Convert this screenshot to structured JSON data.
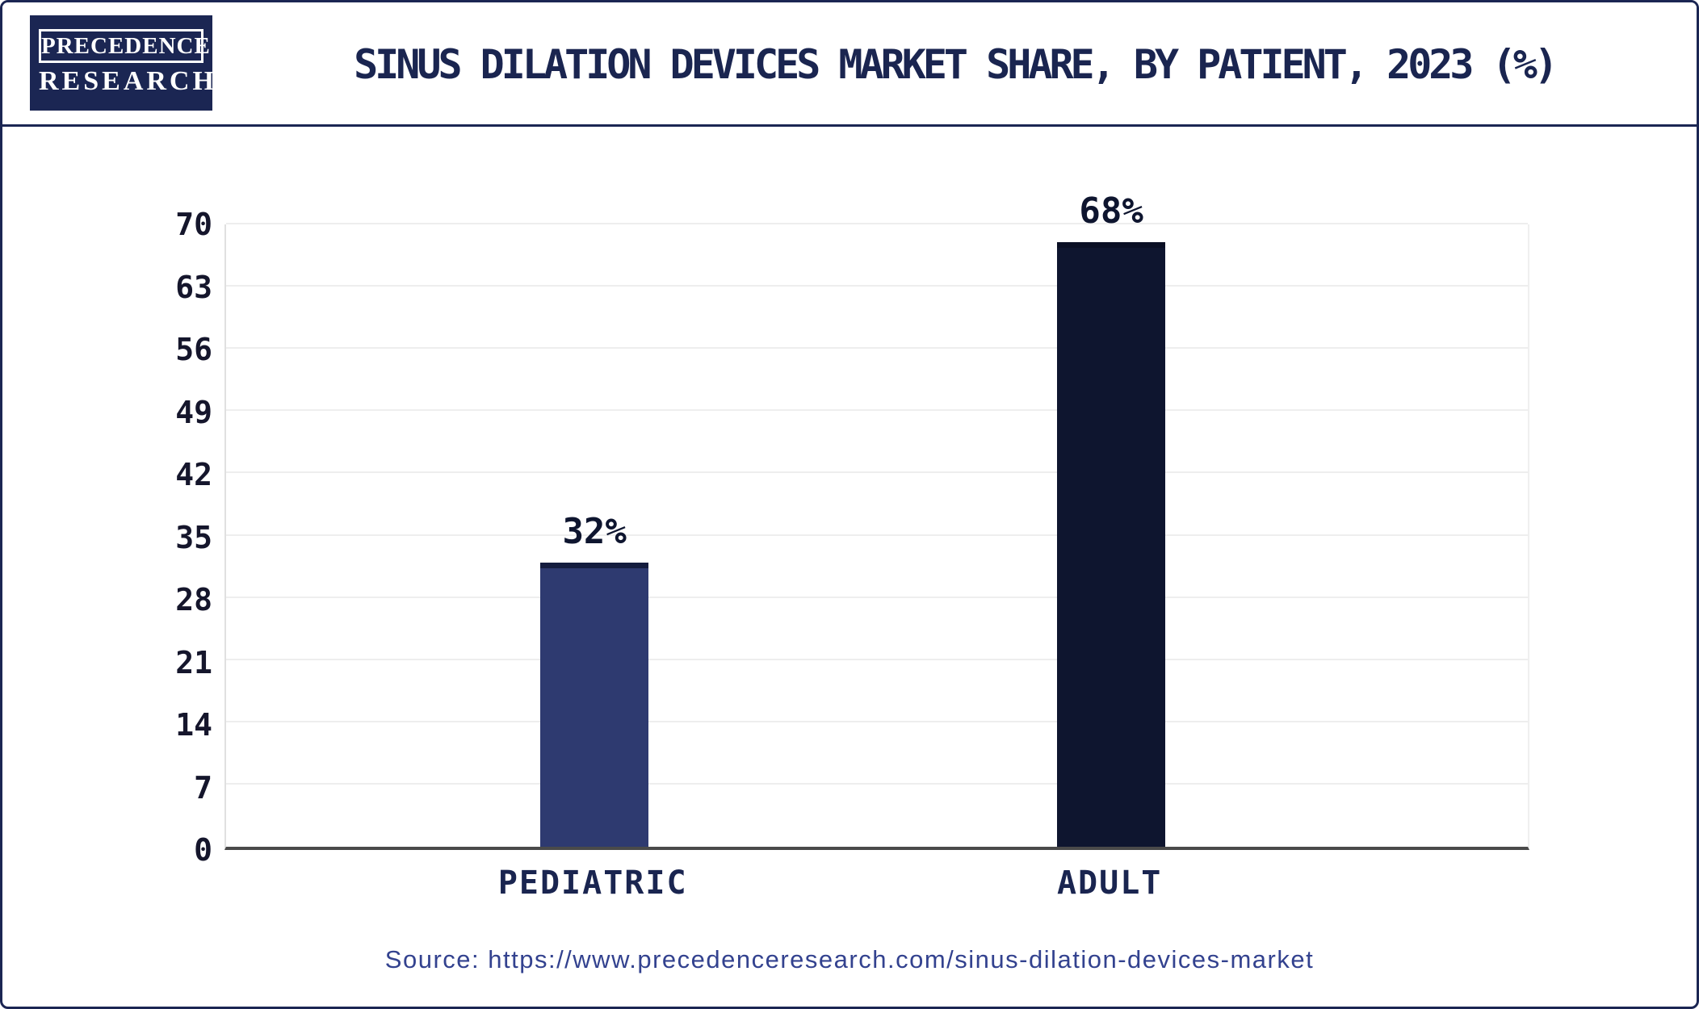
{
  "header": {
    "logo_line1": "PRECEDENCE",
    "logo_line2": "RESEARCH",
    "title": "SINUS DILATION DEVICES MARKET SHARE, BY PATIENT, 2023 (%)"
  },
  "chart_data": {
    "type": "bar",
    "title": "SINUS DILATION DEVICES MARKET SHARE, BY PATIENT, 2023 (%)",
    "categories": [
      "PEDIATRIC",
      "ADULT"
    ],
    "values": [
      32,
      68
    ],
    "value_labels": [
      "32%",
      "68%"
    ],
    "yticks": [
      0,
      7,
      14,
      21,
      28,
      35,
      42,
      49,
      56,
      63,
      70
    ],
    "ylim": [
      0,
      70
    ],
    "grid": true,
    "legend": "none",
    "bar_colors": [
      "#2e3a70",
      "#0e152f"
    ],
    "bar_cap_colors": [
      "#141c3e",
      "#0a0f24"
    ]
  },
  "footer": {
    "source": "Source: https://www.precedenceresearch.com/sinus-dilation-devices-market"
  },
  "colors": {
    "accent_navy": "#1b2653",
    "axis": "#4a4a4a",
    "gridline": "#eeeeee",
    "source_text": "#33428f"
  }
}
